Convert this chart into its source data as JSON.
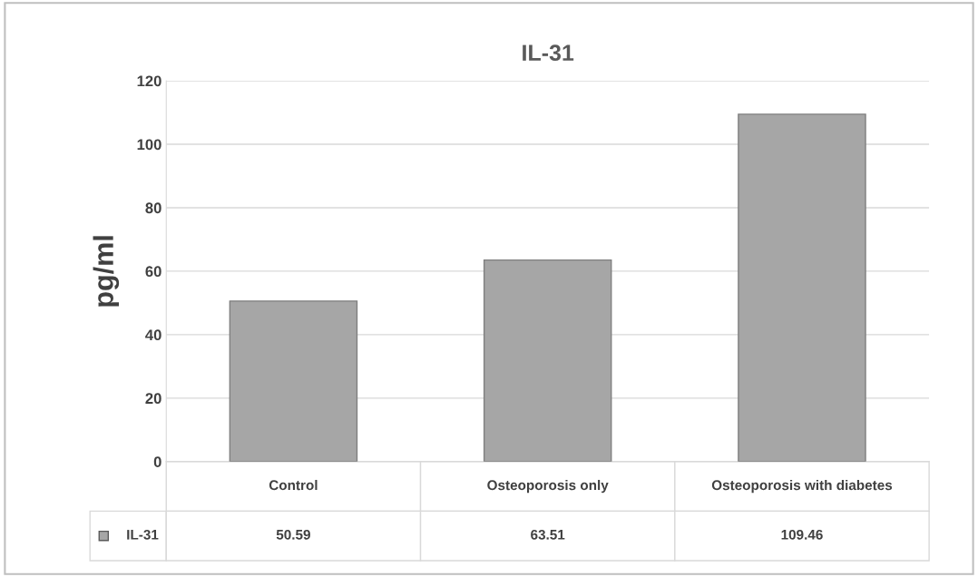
{
  "chart_data": {
    "type": "bar",
    "title": "IL-31",
    "ylabel": "pg/ml",
    "categories": [
      "Control",
      "Osteoporosis only",
      "Osteoporosis with diabetes"
    ],
    "series": [
      {
        "name": "IL-31",
        "color": "#a6a6a6",
        "values": [
          50.59,
          63.51,
          109.46
        ]
      }
    ],
    "ylim": [
      0,
      120
    ],
    "yticks": [
      0,
      20,
      40,
      60,
      80,
      100,
      120
    ],
    "grid": "y",
    "data_labels": true,
    "legend": "bottom"
  }
}
